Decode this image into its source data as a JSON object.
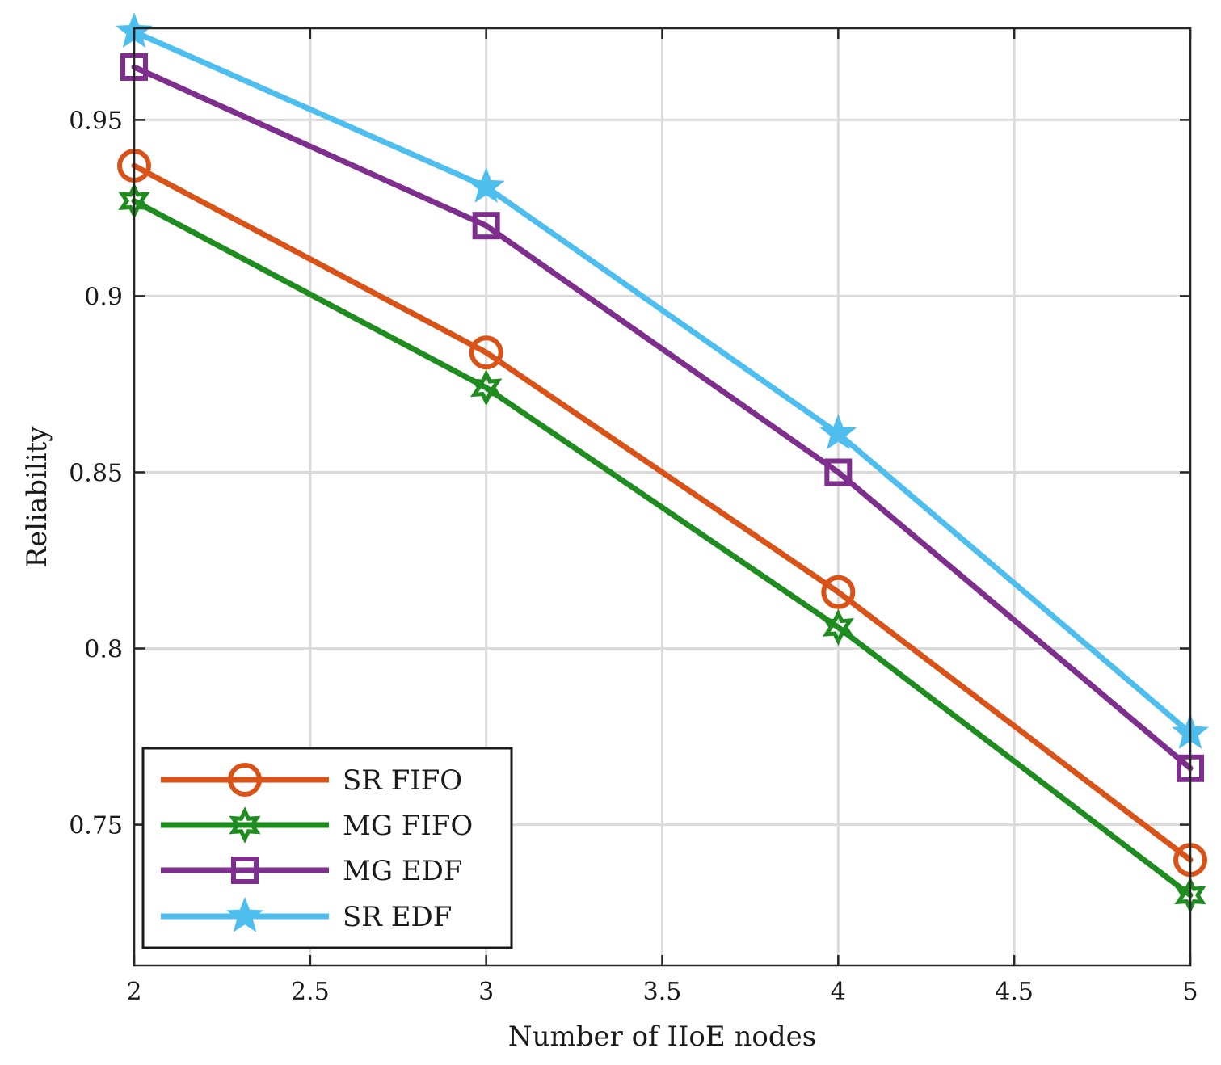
{
  "chart_data": {
    "type": "line",
    "title": "",
    "xlabel": "Number of IIoE nodes",
    "ylabel": "Reliability",
    "xlim": [
      2,
      5
    ],
    "ylim": [
      0.71,
      0.976
    ],
    "xticks": [
      2,
      2.5,
      3,
      3.5,
      4,
      4.5,
      5
    ],
    "xtick_labels": [
      "2",
      "2.5",
      "3",
      "3.5",
      "4",
      "4.5",
      "5"
    ],
    "yticks": [
      0.75,
      0.8,
      0.85,
      0.9,
      0.95
    ],
    "ytick_labels": [
      "0.75",
      "0.8",
      "0.85",
      "0.9",
      "0.95"
    ],
    "grid": true,
    "legend_position": "bottom-left",
    "x": [
      2,
      3,
      4,
      5
    ],
    "series": [
      {
        "name": "SR FIFO",
        "values": [
          0.937,
          0.884,
          0.816,
          0.74
        ],
        "color": "#D95319",
        "marker": "circle"
      },
      {
        "name": "MG FIFO",
        "values": [
          0.927,
          0.874,
          0.806,
          0.73
        ],
        "color": "#1E8C1E",
        "marker": "hexagram"
      },
      {
        "name": "MG EDF",
        "values": [
          0.965,
          0.92,
          0.85,
          0.766
        ],
        "color": "#7E2F8E",
        "marker": "square"
      },
      {
        "name": "SR EDF",
        "values": [
          0.975,
          0.931,
          0.861,
          0.776
        ],
        "color": "#4DBEEE",
        "marker": "pentagram"
      }
    ]
  }
}
